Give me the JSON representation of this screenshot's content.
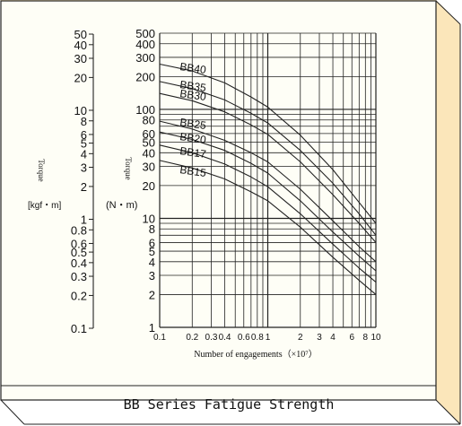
{
  "caption": "BB Series Fatigue Strength",
  "colors": {
    "panel": "#fefef6",
    "bevel": "#fbe6ba",
    "line": "#222222"
  },
  "chart_data": {
    "type": "line",
    "xscale": "log",
    "yscale": "log",
    "xlim": [
      0.1,
      10
    ],
    "ylim": [
      1,
      500
    ],
    "xlabel": "Number of engagements（×10⁷）",
    "ylabel": "Torque",
    "y_unit": "(N・m)",
    "ylabel2": "Torque",
    "y2_unit": "[kgf・m]",
    "xticks": [
      {
        "v": 0.1,
        "t": "0.1"
      },
      {
        "v": 0.2,
        "t": "0.2"
      },
      {
        "v": 0.3,
        "t": "0.3"
      },
      {
        "v": 0.4,
        "t": "0.4"
      },
      {
        "v": 0.6,
        "t": "0.6"
      },
      {
        "v": 0.8,
        "t": "0.8"
      },
      {
        "v": 1,
        "t": "1"
      },
      {
        "v": 2,
        "t": "2"
      },
      {
        "v": 3,
        "t": "3"
      },
      {
        "v": 4,
        "t": "4"
      },
      {
        "v": 6,
        "t": "6"
      },
      {
        "v": 8,
        "t": "8"
      },
      {
        "v": 10,
        "t": "10"
      }
    ],
    "xgrid": [
      0.1,
      0.2,
      0.3,
      0.4,
      0.5,
      0.6,
      0.7,
      0.8,
      0.9,
      1,
      2,
      3,
      4,
      5,
      6,
      7,
      8,
      9,
      10
    ],
    "yticks": [
      {
        "v": 1,
        "t": "1"
      },
      {
        "v": 2,
        "t": "2"
      },
      {
        "v": 3,
        "t": "3"
      },
      {
        "v": 4,
        "t": "4"
      },
      {
        "v": 5,
        "t": "5"
      },
      {
        "v": 6,
        "t": "6"
      },
      {
        "v": 8,
        "t": "8"
      },
      {
        "v": 10,
        "t": "10"
      },
      {
        "v": 20,
        "t": "20"
      },
      {
        "v": 30,
        "t": "30"
      },
      {
        "v": 40,
        "t": "40"
      },
      {
        "v": 50,
        "t": "50"
      },
      {
        "v": 60,
        "t": "60"
      },
      {
        "v": 80,
        "t": "80"
      },
      {
        "v": 100,
        "t": "100"
      },
      {
        "v": 200,
        "t": "200"
      },
      {
        "v": 300,
        "t": "300"
      },
      {
        "v": 400,
        "t": "400"
      },
      {
        "v": 500,
        "t": "500"
      }
    ],
    "ygrid": [
      1,
      2,
      3,
      4,
      5,
      6,
      7,
      8,
      9,
      10,
      20,
      30,
      40,
      50,
      60,
      70,
      80,
      90,
      100,
      200,
      300,
      400,
      500
    ],
    "y2ticks": [
      {
        "v": 0.1,
        "t": "0.1"
      },
      {
        "v": 0.2,
        "t": "0.2"
      },
      {
        "v": 0.3,
        "t": "0.3"
      },
      {
        "v": 0.4,
        "t": "0.4"
      },
      {
        "v": 0.5,
        "t": "0.5"
      },
      {
        "v": 0.6,
        "t": "0.6"
      },
      {
        "v": 0.8,
        "t": "0.8"
      },
      {
        "v": 1,
        "t": "1"
      },
      {
        "v": 2,
        "t": "2"
      },
      {
        "v": 3,
        "t": "3"
      },
      {
        "v": 4,
        "t": "4"
      },
      {
        "v": 5,
        "t": "5"
      },
      {
        "v": 6,
        "t": "6"
      },
      {
        "v": 8,
        "t": "8"
      },
      {
        "v": 10,
        "t": "10"
      },
      {
        "v": 20,
        "t": "20"
      },
      {
        "v": 30,
        "t": "30"
      },
      {
        "v": 40,
        "t": "40"
      },
      {
        "v": 50,
        "t": "50"
      }
    ],
    "series": [
      {
        "name": "BB40",
        "x": [
          0.1,
          0.2,
          0.4,
          0.7,
          1,
          2,
          4,
          7,
          10
        ],
        "y": [
          260,
          225,
          175,
          130,
          105,
          58,
          28,
          14,
          9
        ]
      },
      {
        "name": "BB35",
        "x": [
          0.1,
          0.2,
          0.4,
          0.7,
          1,
          2,
          4,
          7,
          10
        ],
        "y": [
          180,
          155,
          122,
          92,
          75,
          42,
          21,
          11,
          7
        ]
      },
      {
        "name": "BB30",
        "x": [
          0.1,
          0.2,
          0.4,
          0.7,
          1,
          2,
          4,
          7,
          10
        ],
        "y": [
          140,
          120,
          95,
          72,
          59,
          33,
          16.5,
          9,
          6
        ]
      },
      {
        "name": "BB25",
        "x": [
          0.1,
          0.2,
          0.4,
          0.7,
          1,
          2,
          4,
          7,
          10
        ],
        "y": [
          78,
          66,
          52,
          40,
          33,
          18.5,
          9.5,
          5.5,
          4
        ]
      },
      {
        "name": "BB20",
        "x": [
          0.1,
          0.2,
          0.4,
          0.7,
          1,
          2,
          4,
          7,
          10
        ],
        "y": [
          62,
          53,
          42,
          32,
          26,
          14.5,
          7.5,
          4.5,
          3.3
        ]
      },
      {
        "name": "BB17",
        "x": [
          0.1,
          0.2,
          0.4,
          0.7,
          1,
          2,
          4,
          7,
          10
        ],
        "y": [
          47,
          40,
          31.5,
          24,
          19.5,
          11,
          5.8,
          3.5,
          2.6
        ]
      },
      {
        "name": "BB15",
        "x": [
          0.1,
          0.2,
          0.4,
          0.7,
          1,
          2,
          4,
          7,
          10
        ],
        "y": [
          34,
          29,
          23,
          17.5,
          14.5,
          8.3,
          4.4,
          2.7,
          2
        ]
      }
    ]
  }
}
